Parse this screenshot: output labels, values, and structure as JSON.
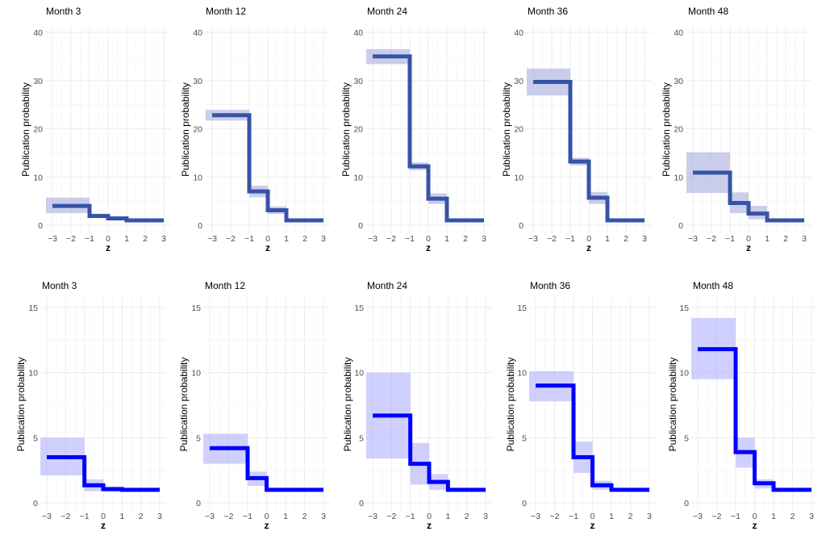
{
  "chart_data": [
    {
      "type": "line",
      "row": "top",
      "step": true,
      "title": "Month 3",
      "xlabel": "z",
      "ylabel": "Publication probability",
      "xlim": [
        -3,
        3
      ],
      "ylim": [
        0,
        40
      ],
      "x_ticks": [
        "-3",
        "-2",
        "-1",
        "0",
        "1",
        "2",
        "3"
      ],
      "y_ticks": [
        "0",
        "10",
        "20",
        "30",
        "40"
      ],
      "line_color": "#3753a7",
      "band_color": "#9fa6d8",
      "segments": [
        {
          "x": [
            -3,
            -1
          ],
          "y": 4.0,
          "lo": 2.5,
          "hi": 5.7
        },
        {
          "x": [
            -1,
            0
          ],
          "y": 1.9,
          "lo": 1.5,
          "hi": 2.4
        },
        {
          "x": [
            0,
            1
          ],
          "y": 1.4,
          "lo": 1.1,
          "hi": 1.8
        },
        {
          "x": [
            1,
            3
          ],
          "y": 1.0,
          "lo": 1.0,
          "hi": 1.0
        }
      ]
    },
    {
      "type": "line",
      "row": "top",
      "step": true,
      "title": "Month 12",
      "xlabel": "z",
      "ylabel": "Publication probability",
      "xlim": [
        -3,
        3
      ],
      "ylim": [
        0,
        40
      ],
      "x_ticks": [
        "-3",
        "-2",
        "-1",
        "0",
        "1",
        "2",
        "3"
      ],
      "y_ticks": [
        "0",
        "10",
        "20",
        "30",
        "40"
      ],
      "line_color": "#3753a7",
      "band_color": "#9fa6d8",
      "segments": [
        {
          "x": [
            -3,
            -1
          ],
          "y": 22.8,
          "lo": 21.7,
          "hi": 23.9
        },
        {
          "x": [
            -1,
            0
          ],
          "y": 7.0,
          "lo": 5.8,
          "hi": 8.2
        },
        {
          "x": [
            0,
            1
          ],
          "y": 3.1,
          "lo": 2.3,
          "hi": 3.9
        },
        {
          "x": [
            1,
            3
          ],
          "y": 1.0,
          "lo": 1.0,
          "hi": 1.0
        }
      ]
    },
    {
      "type": "line",
      "row": "top",
      "step": true,
      "title": "Month 24",
      "xlabel": "z",
      "ylabel": "Publication probability",
      "xlim": [
        -3,
        3
      ],
      "ylim": [
        0,
        40
      ],
      "x_ticks": [
        "-3",
        "-2",
        "-1",
        "0",
        "1",
        "2",
        "3"
      ],
      "y_ticks": [
        "0",
        "10",
        "20",
        "30",
        "40"
      ],
      "line_color": "#3753a7",
      "band_color": "#9fa6d8",
      "segments": [
        {
          "x": [
            -3,
            -1
          ],
          "y": 35.0,
          "lo": 33.4,
          "hi": 36.5
        },
        {
          "x": [
            -1,
            0
          ],
          "y": 12.2,
          "lo": 11.4,
          "hi": 13.0
        },
        {
          "x": [
            0,
            1
          ],
          "y": 5.5,
          "lo": 4.4,
          "hi": 6.6
        },
        {
          "x": [
            1,
            3
          ],
          "y": 1.0,
          "lo": 1.0,
          "hi": 1.0
        }
      ]
    },
    {
      "type": "line",
      "row": "top",
      "step": true,
      "title": "Month 36",
      "xlabel": "z",
      "ylabel": "Publication probability",
      "xlim": [
        -3,
        3
      ],
      "ylim": [
        0,
        40
      ],
      "x_ticks": [
        "-3",
        "-2",
        "-1",
        "0",
        "1",
        "2",
        "3"
      ],
      "y_ticks": [
        "0",
        "10",
        "20",
        "30",
        "40"
      ],
      "line_color": "#3753a7",
      "band_color": "#9fa6d8",
      "segments": [
        {
          "x": [
            -3,
            -1
          ],
          "y": 29.7,
          "lo": 26.9,
          "hi": 32.5
        },
        {
          "x": [
            -1,
            0
          ],
          "y": 13.2,
          "lo": 12.4,
          "hi": 14.0
        },
        {
          "x": [
            0,
            1
          ],
          "y": 5.7,
          "lo": 4.4,
          "hi": 6.9
        },
        {
          "x": [
            1,
            3
          ],
          "y": 1.0,
          "lo": 1.0,
          "hi": 1.0
        }
      ]
    },
    {
      "type": "line",
      "row": "top",
      "step": true,
      "title": "Month 48",
      "xlabel": "z",
      "ylabel": "Publication probability",
      "xlim": [
        -3,
        3
      ],
      "ylim": [
        0,
        40
      ],
      "x_ticks": [
        "-3",
        "-2",
        "-1",
        "0",
        "1",
        "2",
        "3"
      ],
      "y_ticks": [
        "0",
        "10",
        "20",
        "30",
        "40"
      ],
      "line_color": "#3753a7",
      "band_color": "#9fa6d8",
      "segments": [
        {
          "x": [
            -3,
            -1
          ],
          "y": 10.9,
          "lo": 6.7,
          "hi": 15.1
        },
        {
          "x": [
            -1,
            0
          ],
          "y": 4.6,
          "lo": 2.5,
          "hi": 6.8
        },
        {
          "x": [
            0,
            1
          ],
          "y": 2.4,
          "lo": 1.2,
          "hi": 4.0
        },
        {
          "x": [
            1,
            3
          ],
          "y": 1.0,
          "lo": 1.0,
          "hi": 1.0
        }
      ]
    },
    {
      "type": "line",
      "row": "bottom",
      "step": true,
      "title": "Month 3",
      "xlabel": "z",
      "ylabel": "Publication probability",
      "xlim": [
        -3,
        3
      ],
      "ylim": [
        0,
        15
      ],
      "x_ticks": [
        "-3",
        "-2",
        "-1",
        "0",
        "1",
        "2",
        "3"
      ],
      "y_ticks": [
        "0",
        "5",
        "10",
        "15"
      ],
      "line_color": "#0000ff",
      "band_color": "#aaaaff",
      "segments": [
        {
          "x": [
            -3,
            -1
          ],
          "y": 3.5,
          "lo": 2.1,
          "hi": 5.0
        },
        {
          "x": [
            -1,
            0
          ],
          "y": 1.35,
          "lo": 0.9,
          "hi": 1.8
        },
        {
          "x": [
            0,
            1
          ],
          "y": 1.05,
          "lo": 0.85,
          "hi": 1.25
        },
        {
          "x": [
            1,
            3
          ],
          "y": 1.0,
          "lo": 1.0,
          "hi": 1.0
        }
      ]
    },
    {
      "type": "line",
      "row": "bottom",
      "step": true,
      "title": "Month 12",
      "xlabel": "z",
      "ylabel": "Publication probability",
      "xlim": [
        -3,
        3
      ],
      "ylim": [
        0,
        15
      ],
      "x_ticks": [
        "-3",
        "-2",
        "-1",
        "0",
        "1",
        "2",
        "3"
      ],
      "y_ticks": [
        "0",
        "5",
        "10",
        "15"
      ],
      "line_color": "#0000ff",
      "band_color": "#aaaaff",
      "segments": [
        {
          "x": [
            -3,
            -1
          ],
          "y": 4.2,
          "lo": 3.0,
          "hi": 5.3
        },
        {
          "x": [
            -1,
            0
          ],
          "y": 1.9,
          "lo": 1.3,
          "hi": 2.4
        },
        {
          "x": [
            0,
            1
          ],
          "y": 1.0,
          "lo": 1.0,
          "hi": 1.0
        },
        {
          "x": [
            1,
            3
          ],
          "y": 1.0,
          "lo": 1.0,
          "hi": 1.0
        }
      ]
    },
    {
      "type": "line",
      "row": "bottom",
      "step": true,
      "title": "Month 24",
      "xlabel": "z",
      "ylabel": "Publication probability",
      "xlim": [
        -3,
        3
      ],
      "ylim": [
        0,
        15
      ],
      "x_ticks": [
        "-3",
        "-2",
        "-1",
        "0",
        "1",
        "2",
        "3"
      ],
      "y_ticks": [
        "0",
        "5",
        "10",
        "15"
      ],
      "line_color": "#0000ff",
      "band_color": "#aaaaff",
      "segments": [
        {
          "x": [
            -3,
            -1
          ],
          "y": 6.7,
          "lo": 3.4,
          "hi": 10.0
        },
        {
          "x": [
            -1,
            0
          ],
          "y": 3.0,
          "lo": 1.4,
          "hi": 4.6
        },
        {
          "x": [
            0,
            1
          ],
          "y": 1.6,
          "lo": 1.0,
          "hi": 2.2
        },
        {
          "x": [
            1,
            3
          ],
          "y": 1.0,
          "lo": 1.0,
          "hi": 1.0
        }
      ]
    },
    {
      "type": "line",
      "row": "bottom",
      "step": true,
      "title": "Month 36",
      "xlabel": "z",
      "ylabel": "Publication probability",
      "xlim": [
        -3,
        3
      ],
      "ylim": [
        0,
        15
      ],
      "x_ticks": [
        "-3",
        "-2",
        "-1",
        "0",
        "1",
        "2",
        "3"
      ],
      "y_ticks": [
        "0",
        "5",
        "10",
        "15"
      ],
      "line_color": "#0000ff",
      "band_color": "#aaaaff",
      "segments": [
        {
          "x": [
            -3,
            -1
          ],
          "y": 9.0,
          "lo": 7.8,
          "hi": 10.1
        },
        {
          "x": [
            -1,
            0
          ],
          "y": 3.5,
          "lo": 2.3,
          "hi": 4.7
        },
        {
          "x": [
            0,
            1
          ],
          "y": 1.35,
          "lo": 1.0,
          "hi": 1.7
        },
        {
          "x": [
            1,
            3
          ],
          "y": 1.0,
          "lo": 1.0,
          "hi": 1.0
        }
      ]
    },
    {
      "type": "line",
      "row": "bottom",
      "step": true,
      "title": "Month 48",
      "xlabel": "z",
      "ylabel": "Publication probability",
      "xlim": [
        -3,
        3
      ],
      "ylim": [
        0,
        15
      ],
      "x_ticks": [
        "-3",
        "-2",
        "-1",
        "0",
        "1",
        "2",
        "3"
      ],
      "y_ticks": [
        "0",
        "5",
        "10",
        "15"
      ],
      "line_color": "#0000ff",
      "band_color": "#aaaaff",
      "segments": [
        {
          "x": [
            -3,
            -1
          ],
          "y": 11.8,
          "lo": 9.5,
          "hi": 14.2
        },
        {
          "x": [
            -1,
            0
          ],
          "y": 3.9,
          "lo": 2.7,
          "hi": 5.0
        },
        {
          "x": [
            0,
            1
          ],
          "y": 1.5,
          "lo": 1.1,
          "hi": 1.8
        },
        {
          "x": [
            1,
            3
          ],
          "y": 1.0,
          "lo": 1.0,
          "hi": 1.0
        }
      ]
    }
  ]
}
